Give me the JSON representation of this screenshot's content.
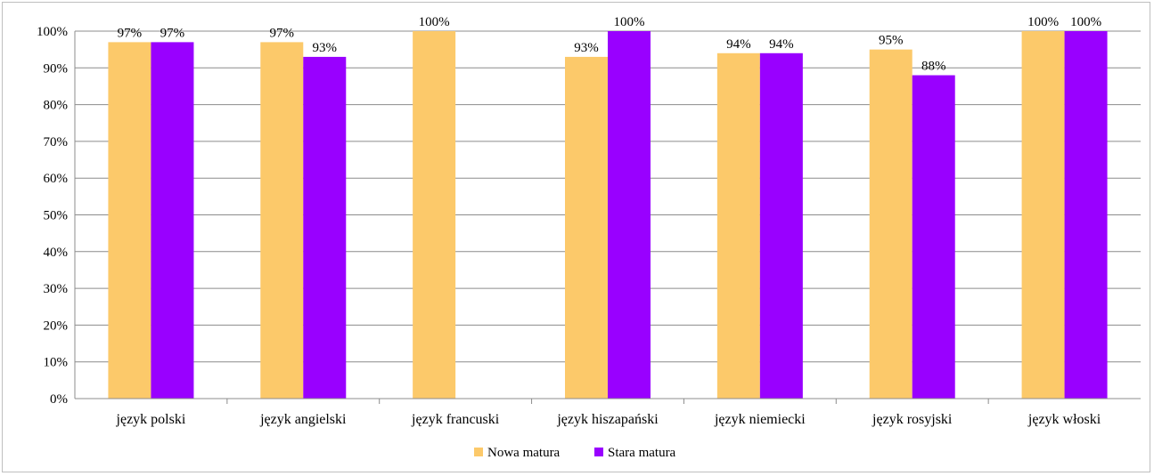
{
  "chart_data": {
    "type": "bar",
    "title": "",
    "xlabel": "",
    "ylabel": "",
    "ylim": [
      0,
      100
    ],
    "y_ticks": [
      "0%",
      "10%",
      "20%",
      "30%",
      "40%",
      "50%",
      "60%",
      "70%",
      "80%",
      "90%",
      "100%"
    ],
    "grid": true,
    "legend_position": "bottom",
    "categories": [
      "język polski",
      "język angielski",
      "język francuski",
      "język hiszapański",
      "język niemiecki",
      "język rosyjski",
      "język włoski"
    ],
    "series": [
      {
        "name": "Nowa matura",
        "color": "#fcc96a",
        "values": [
          97,
          97,
          100,
          93,
          94,
          95,
          100
        ],
        "labels": [
          "97%",
          "97%",
          "100%",
          "93%",
          "94%",
          "95%",
          "100%"
        ]
      },
      {
        "name": "Stara matura",
        "color": "#9900ff",
        "values": [
          97,
          93,
          null,
          100,
          94,
          88,
          100
        ],
        "labels": [
          "97%",
          "93%",
          "",
          "100%",
          "94%",
          "88%",
          "100%"
        ]
      }
    ]
  }
}
